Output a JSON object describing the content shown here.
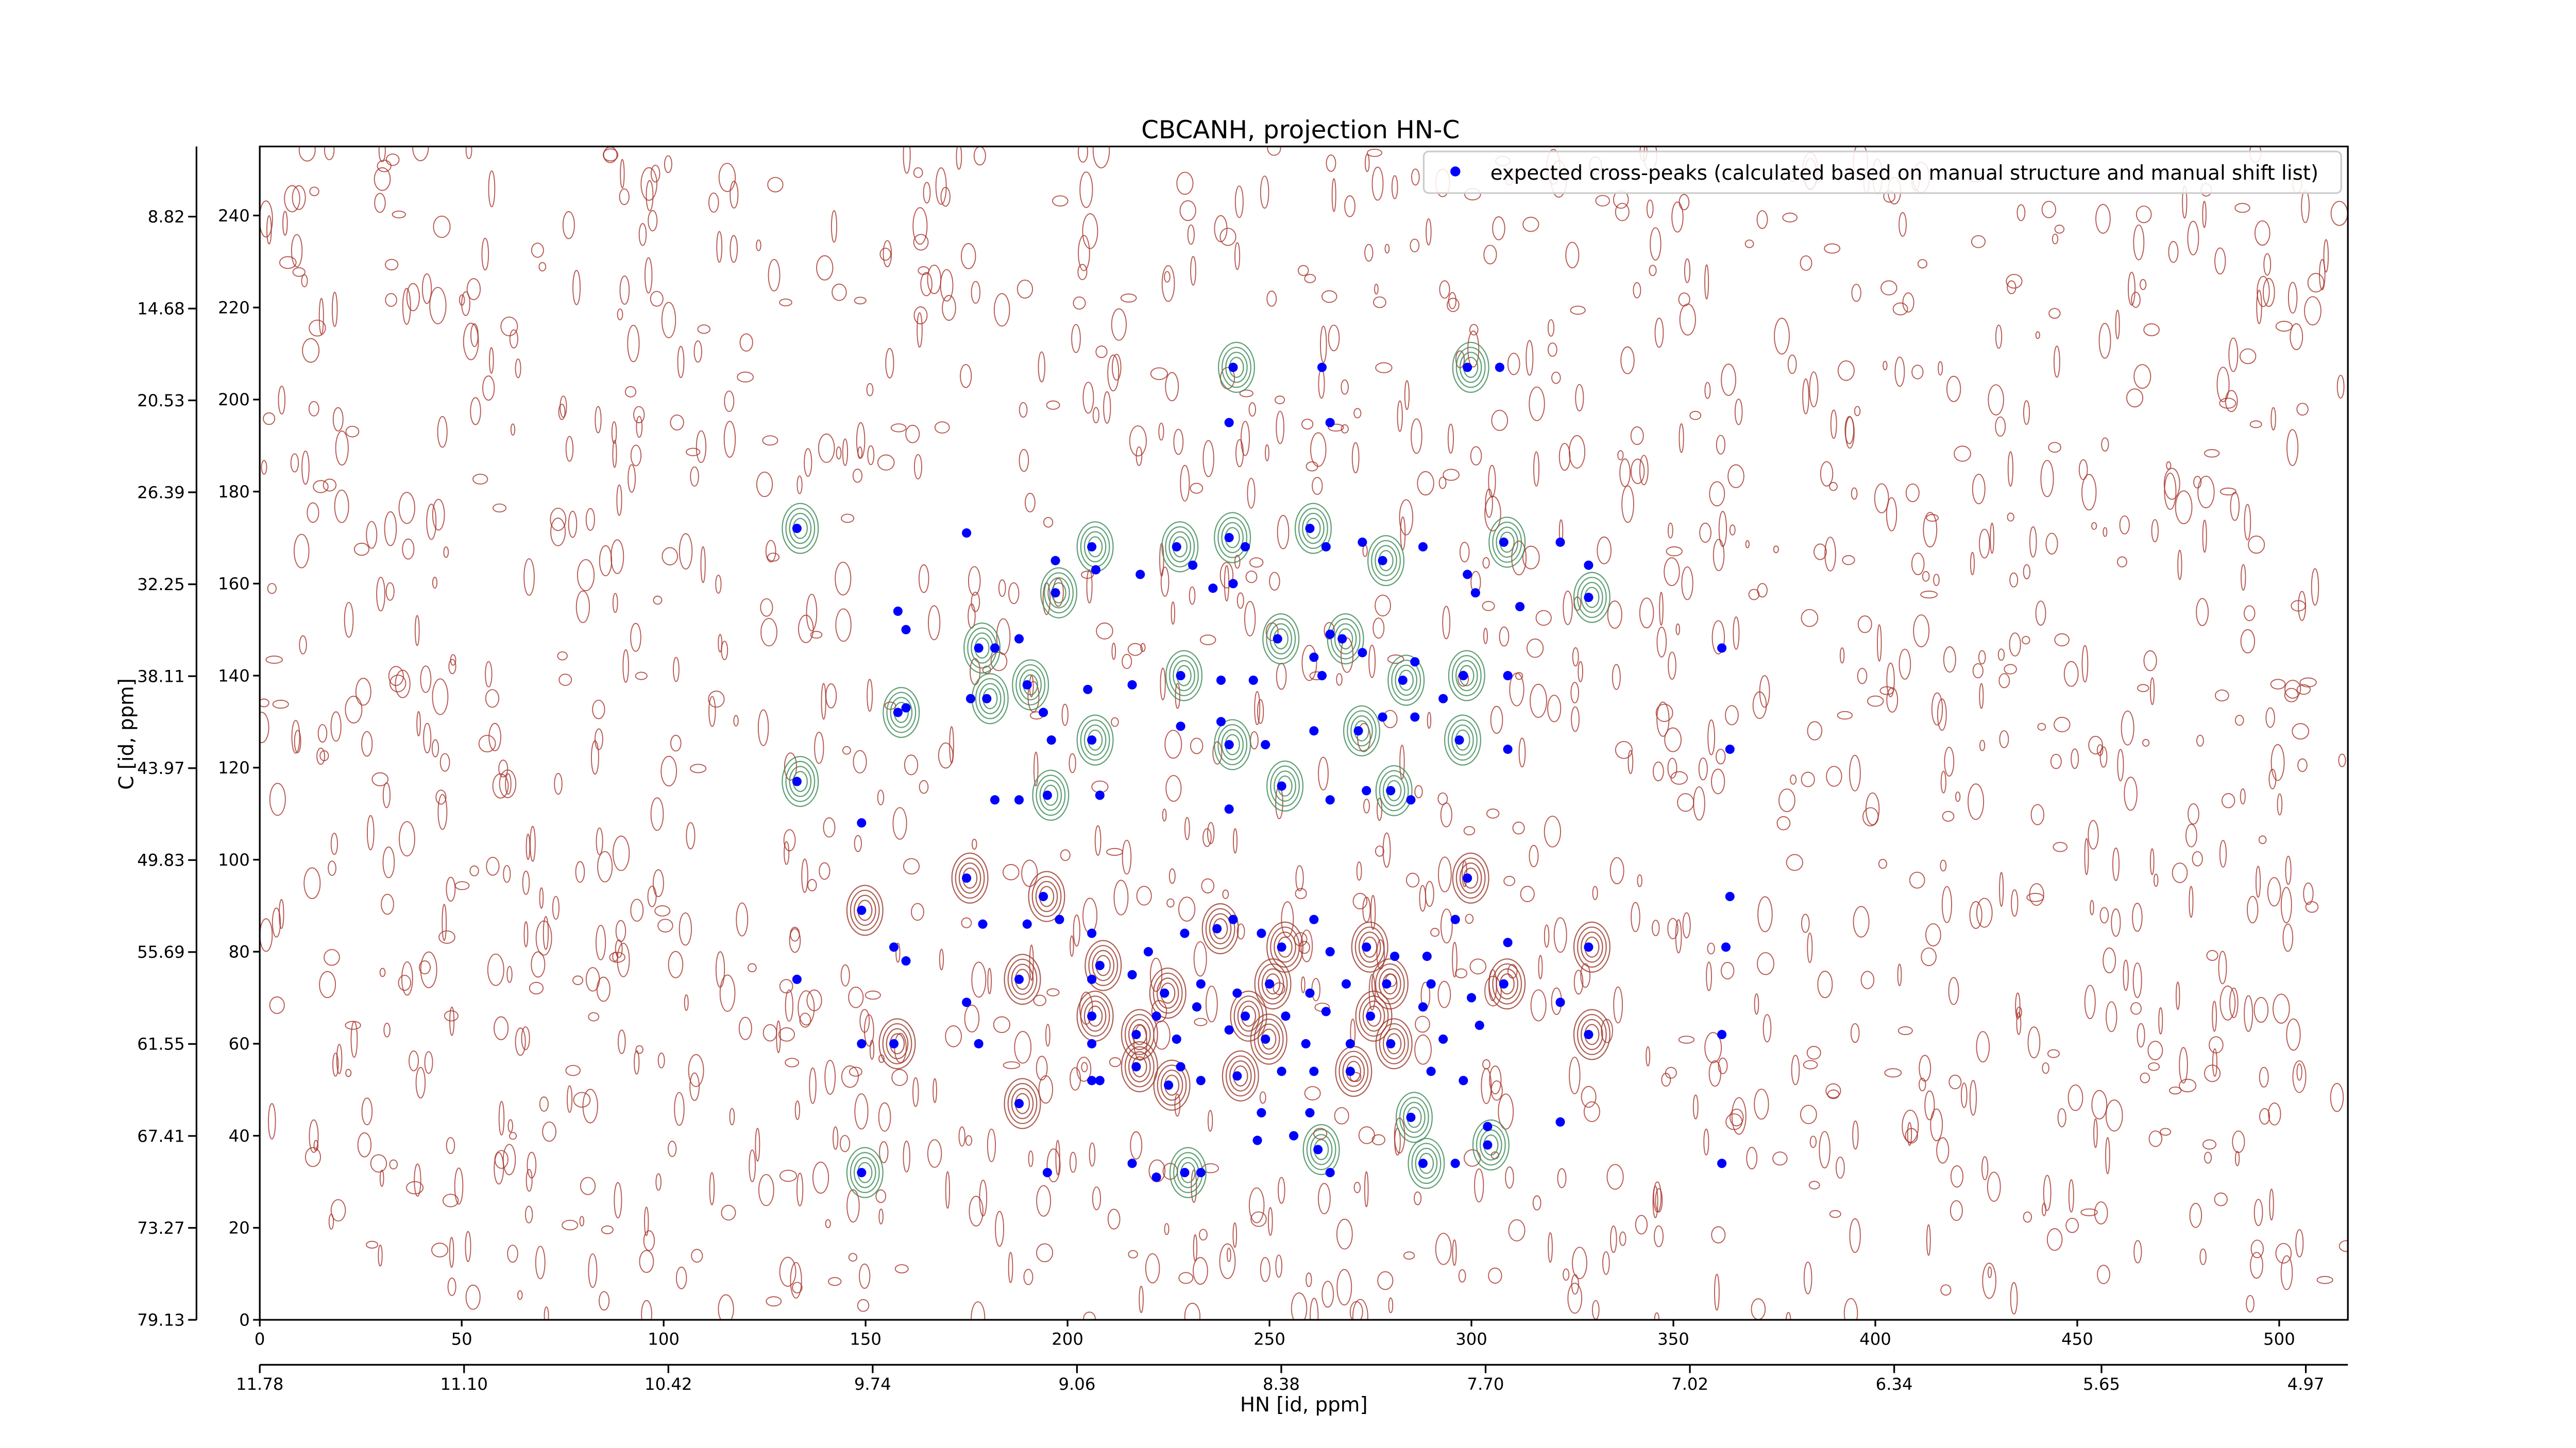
{
  "chart_data": {
    "type": "scatter",
    "title": "CBCANH, projection HN-C",
    "xlabel": "HN [id, ppm]",
    "ylabel": "C [id, ppm]",
    "xlim": [
      0,
      517
    ],
    "xticks": [
      0,
      50,
      100,
      150,
      200,
      250,
      300,
      350,
      400,
      450,
      500
    ],
    "ylim": [
      0,
      255
    ],
    "yticks": [
      0,
      20,
      40,
      60,
      80,
      100,
      120,
      140,
      160,
      180,
      200,
      220,
      240
    ],
    "x2lim": [
      11.78,
      4.83
    ],
    "x2ticks": [
      11.78,
      {
        "value": 11.1,
        "label": "11.10"
      },
      10.42,
      9.74,
      9.06,
      8.38,
      {
        "value": 7.7,
        "label": "7.70"
      },
      7.02,
      6.34,
      5.65,
      4.97
    ],
    "y2lim": [
      79.13,
      4.35
    ],
    "y2ticks": [
      79.13,
      73.27,
      67.41,
      61.55,
      55.69,
      49.83,
      43.97,
      38.11,
      32.25,
      26.39,
      20.53,
      14.68,
      8.82
    ],
    "legend": "upper right",
    "series": [
      {
        "name": "expected cross-peaks (calculated based on manual structure and manual shift list)",
        "color": "#0000ff",
        "x": [
          241,
          240,
          263,
          299,
          307,
          265,
          133,
          175,
          197,
          206,
          207,
          218,
          227,
          231,
          236,
          240,
          244,
          241,
          260,
          264,
          273,
          278,
          288,
          299,
          308,
          322,
          329,
          329,
          312,
          301,
          197,
          158,
          160,
          178,
          182,
          188,
          190,
          205,
          216,
          228,
          238,
          246,
          252,
          261,
          265,
          268,
          263,
          273,
          283,
          286,
          293,
          298,
          309,
          362,
          158,
          160,
          176,
          180,
          194,
          196,
          206,
          228,
          238,
          240,
          249,
          261,
          272,
          278,
          286,
          297,
          309,
          364,
          133,
          182,
          188,
          195,
          208,
          240,
          253,
          265,
          274,
          280,
          285,
          149,
          175,
          179,
          190,
          194,
          198,
          206,
          208,
          220,
          229,
          237,
          241,
          248,
          253,
          261,
          265,
          274,
          281,
          289,
          299,
          296,
          309,
          329,
          364,
          363,
          149,
          157,
          160,
          188,
          206,
          216,
          224,
          233,
          242,
          250,
          260,
          269,
          279,
          290,
          300,
          308,
          133,
          175,
          206,
          222,
          232,
          244,
          254,
          264,
          275,
          288,
          322,
          217,
          227,
          240,
          249,
          259,
          270,
          280,
          293,
          302,
          329,
          362,
          149,
          157,
          178,
          206,
          217,
          228,
          233,
          242,
          253,
          261,
          270,
          290,
          298,
          188,
          206,
          208,
          225,
          248,
          260,
          285,
          304,
          322,
          304,
          247,
          256,
          262,
          216,
          222,
          229,
          233,
          265,
          288,
          296,
          362,
          149,
          195
        ],
        "y": [
          207,
          195,
          207,
          207,
          207,
          195,
          172,
          171,
          165,
          168,
          163,
          162,
          168,
          164,
          159,
          170,
          168,
          160,
          172,
          168,
          169,
          165,
          168,
          162,
          169,
          169,
          164,
          157,
          155,
          158,
          158,
          154,
          150,
          146,
          146,
          148,
          138,
          137,
          138,
          140,
          139,
          139,
          148,
          144,
          149,
          148,
          140,
          145,
          139,
          143,
          135,
          140,
          140,
          146,
          132,
          133,
          135,
          135,
          132,
          126,
          126,
          129,
          130,
          125,
          125,
          128,
          128,
          131,
          131,
          126,
          124,
          124,
          117,
          113,
          113,
          114,
          114,
          111,
          116,
          113,
          115,
          115,
          113,
          108,
          96,
          86,
          86,
          92,
          87,
          84,
          77,
          80,
          84,
          85,
          87,
          84,
          81,
          87,
          80,
          81,
          79,
          79,
          96,
          87,
          82,
          81,
          92,
          81,
          89,
          81,
          78,
          74,
          74,
          75,
          71,
          73,
          71,
          73,
          71,
          73,
          73,
          73,
          70,
          73,
          74,
          69,
          66,
          66,
          68,
          66,
          66,
          67,
          66,
          68,
          69,
          62,
          61,
          63,
          61,
          60,
          60,
          60,
          61,
          64,
          62,
          62,
          60,
          60,
          60,
          60,
          55,
          55,
          52,
          53,
          54,
          54,
          54,
          54,
          52,
          47,
          52,
          52,
          51,
          45,
          45,
          44,
          42,
          43,
          38,
          39,
          40,
          37,
          34,
          31,
          32,
          32,
          32,
          34,
          34,
          34,
          32,
          32
        ]
      }
    ]
  }
}
